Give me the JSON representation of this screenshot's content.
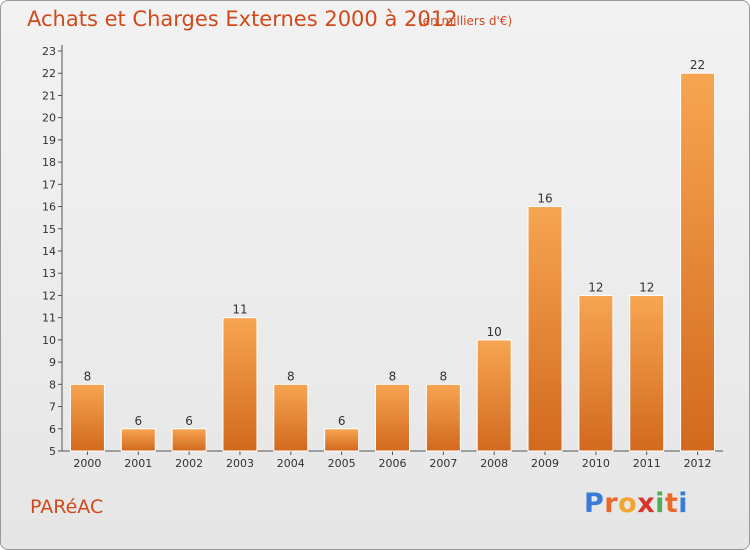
{
  "header": {
    "title": "Achats et Charges Externes 2000 à 2012",
    "subtitle": "(en milliers d'€)"
  },
  "footer": {
    "commune": "PARéAC",
    "brand": "Proxiti",
    "brand_letters": [
      {
        "ch": "P",
        "color": "#3a7bd5"
      },
      {
        "ch": "r",
        "color": "#e8692a"
      },
      {
        "ch": "o",
        "color": "#f2a531"
      },
      {
        "ch": "x",
        "color": "#d9342b"
      },
      {
        "ch": "i",
        "color": "#4caf50"
      },
      {
        "ch": "t",
        "color": "#e8692a"
      },
      {
        "ch": "i",
        "color": "#3a7bd5"
      }
    ]
  },
  "chart_data": {
    "type": "bar",
    "categories": [
      "2000",
      "2001",
      "2002",
      "2003",
      "2004",
      "2005",
      "2006",
      "2007",
      "2008",
      "2009",
      "2010",
      "2011",
      "2012"
    ],
    "values": [
      8,
      6,
      6,
      11,
      8,
      6,
      8,
      8,
      10,
      16,
      12,
      12,
      22
    ],
    "ylim": [
      5,
      23
    ],
    "yticks": [
      5,
      6,
      7,
      8,
      9,
      10,
      11,
      12,
      13,
      14,
      15,
      16,
      17,
      18,
      19,
      20,
      21,
      22,
      23
    ],
    "grid": false,
    "bar_color_top": "#f7a552",
    "bar_color_bottom": "#d2691e"
  }
}
